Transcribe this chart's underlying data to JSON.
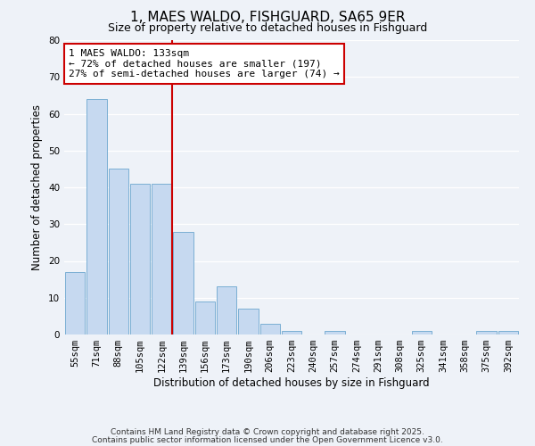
{
  "title": "1, MAES WALDO, FISHGUARD, SA65 9ER",
  "subtitle": "Size of property relative to detached houses in Fishguard",
  "xlabel": "Distribution of detached houses by size in Fishguard",
  "ylabel": "Number of detached properties",
  "bar_labels": [
    "55sqm",
    "71sqm",
    "88sqm",
    "105sqm",
    "122sqm",
    "139sqm",
    "156sqm",
    "173sqm",
    "190sqm",
    "206sqm",
    "223sqm",
    "240sqm",
    "257sqm",
    "274sqm",
    "291sqm",
    "308sqm",
    "325sqm",
    "341sqm",
    "358sqm",
    "375sqm",
    "392sqm"
  ],
  "bar_values": [
    17,
    64,
    45,
    41,
    41,
    28,
    9,
    13,
    7,
    3,
    1,
    0,
    1,
    0,
    0,
    0,
    1,
    0,
    0,
    1,
    1
  ],
  "bar_color": "#c6d9f0",
  "bar_edge_color": "#7bafd4",
  "vline_x": 4.5,
  "annotation_text": "1 MAES WALDO: 133sqm\n← 72% of detached houses are smaller (197)\n27% of semi-detached houses are larger (74) →",
  "annotation_box_color": "#ffffff",
  "annotation_box_edge": "#cc0000",
  "vline_color": "#cc0000",
  "ylim": [
    0,
    80
  ],
  "yticks": [
    0,
    10,
    20,
    30,
    40,
    50,
    60,
    70,
    80
  ],
  "footer1": "Contains HM Land Registry data © Crown copyright and database right 2025.",
  "footer2": "Contains public sector information licensed under the Open Government Licence v3.0.",
  "background_color": "#eef2f8",
  "grid_color": "#ffffff",
  "title_fontsize": 11,
  "subtitle_fontsize": 9,
  "axis_label_fontsize": 8.5,
  "tick_fontsize": 7.5,
  "annotation_fontsize": 8,
  "footer_fontsize": 6.5
}
